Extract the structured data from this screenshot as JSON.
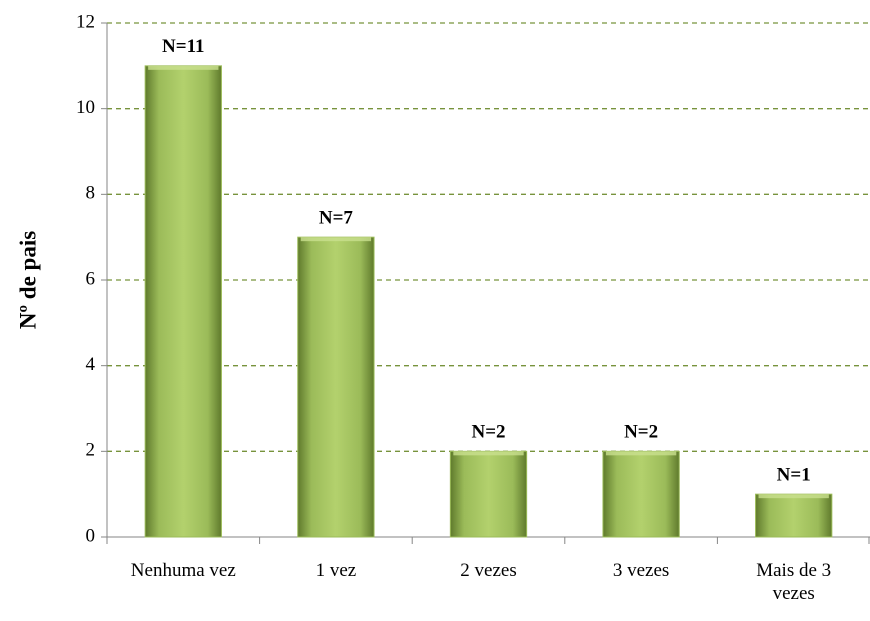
{
  "chart_data": {
    "type": "bar",
    "y_axis_label": "Nº de pais",
    "categories": [
      "Nenhuma vez",
      "1 vez",
      "2 vezes",
      "3 vezes",
      "Mais de 3 vezes"
    ],
    "values": [
      11,
      7,
      2,
      2,
      1
    ],
    "value_labels": [
      "N=11",
      "N=7",
      "N=2",
      "N=2",
      "N=1"
    ],
    "color": "#9bbb59",
    "ylim": [
      0,
      12
    ],
    "yticks": [
      0,
      2,
      4,
      6,
      8,
      10,
      12
    ],
    "grid": true
  }
}
